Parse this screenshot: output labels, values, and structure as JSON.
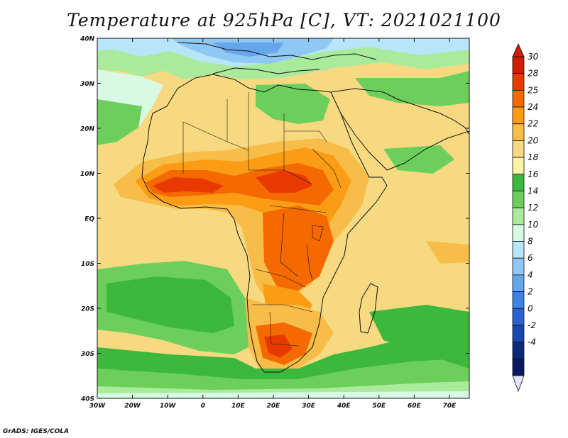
{
  "title": "Temperature at 925hPa [C], VT: 2021021100",
  "credit": "GrADS: IGES/COLA",
  "map": {
    "lat_labels": [
      "40N",
      "30N",
      "20N",
      "10N",
      "EQ",
      "10S",
      "20S",
      "30S",
      "40S"
    ],
    "lon_labels": [
      "30W",
      "20W",
      "10W",
      "0",
      "10E",
      "20E",
      "30E",
      "40E",
      "50E",
      "60E",
      "70E"
    ]
  },
  "colorbar": {
    "labels": [
      "30",
      "28",
      "25",
      "24",
      "22",
      "20",
      "18",
      "16",
      "14",
      "12",
      "10",
      "8",
      "6",
      "4",
      "2",
      "0",
      "-2",
      "-4"
    ],
    "colors": [
      "#d01c00",
      "#e83a00",
      "#f46a00",
      "#fb9d14",
      "#f7bd48",
      "#f7d982",
      "#fbf3a6",
      "#3cb93c",
      "#6ccf5c",
      "#a9ea9b",
      "#d8f9e4",
      "#b6e6f7",
      "#8ec8f3",
      "#66a6ea",
      "#3c83e2",
      "#2a62d2",
      "#1648b0",
      "#0c2a78",
      "#0c1860"
    ],
    "top_arrow_color": "#d01c00",
    "bottom_arrow_color": "#e4e4f8"
  }
}
